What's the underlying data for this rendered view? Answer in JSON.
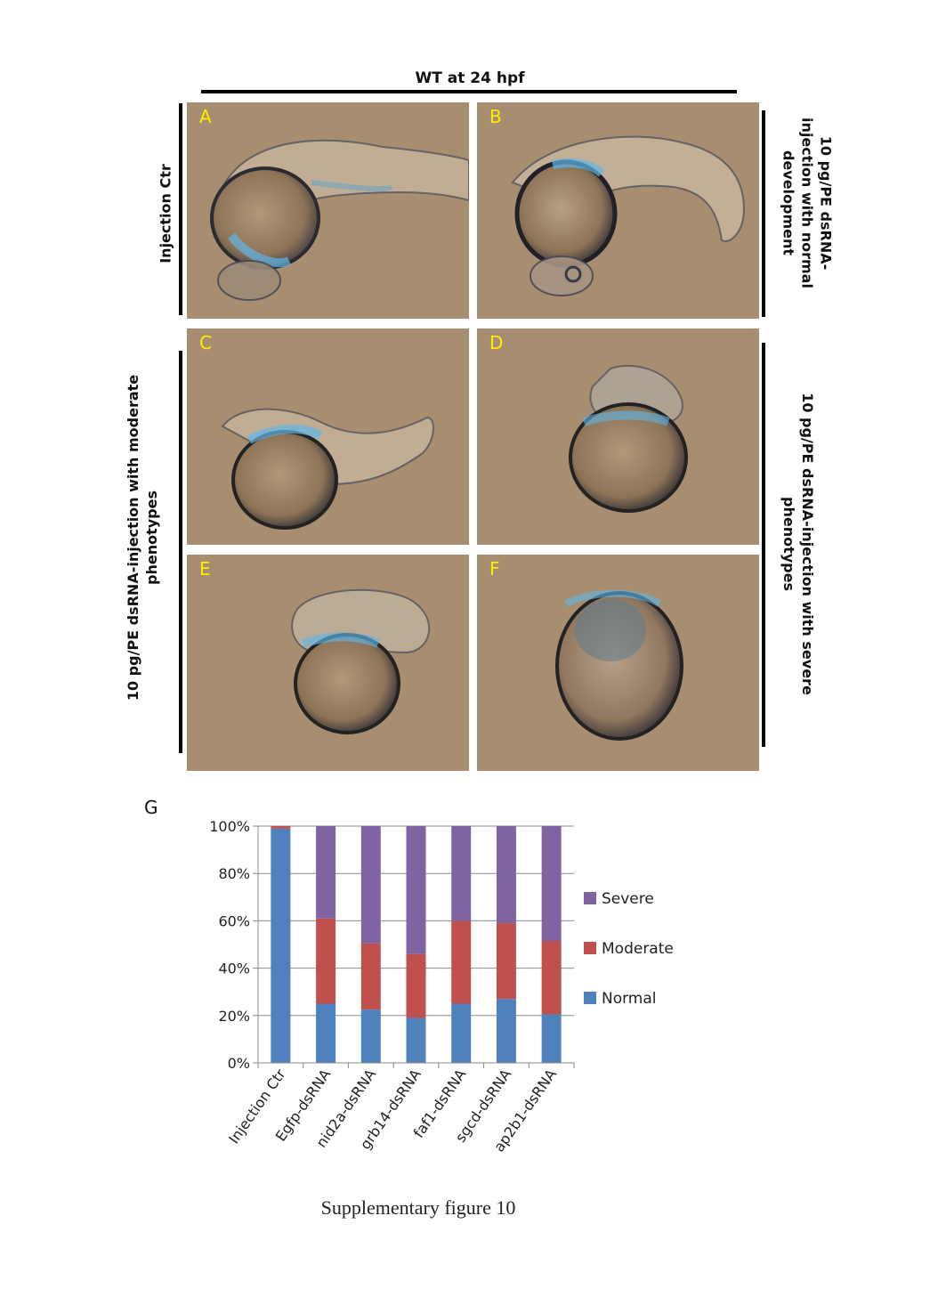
{
  "header": {
    "title": "WT at 24 hpf"
  },
  "side_labels": {
    "top_left": "Injection Ctr",
    "top_right_lines": [
      "10 pg/PE dsRNA-",
      "injection with normal",
      "development"
    ],
    "bottom_left_lines": [
      "10 pg/PE dsRNA-injection with moderate",
      "phenotypes"
    ],
    "bottom_right_lines": [
      "10 pg/PE dsRNA-injection with severe",
      "phenotypes"
    ]
  },
  "panels": [
    {
      "label": "A",
      "phenotype": "normal"
    },
    {
      "label": "B",
      "phenotype": "normal"
    },
    {
      "label": "C",
      "phenotype": "moderate"
    },
    {
      "label": "D",
      "phenotype": "severe"
    },
    {
      "label": "E",
      "phenotype": "moderate"
    },
    {
      "label": "F",
      "phenotype": "severe"
    }
  ],
  "chart_panel_label": "G",
  "chart_data": {
    "type": "bar",
    "stacked": true,
    "categories": [
      "Injection Ctr",
      "Egfp-dsRNA",
      "nid2a-dsRNA",
      "grb14-dsRNA",
      "faf1-dsRNA",
      "sgcd-dsRNA",
      "ap2b1-dsRNA"
    ],
    "series": [
      {
        "name": "Normal",
        "color": "#4f81bd",
        "values": [
          99,
          25,
          22.5,
          19,
          25,
          27,
          20.5
        ]
      },
      {
        "name": "Moderate",
        "color": "#c0504d",
        "values": [
          1,
          36,
          28,
          27,
          35,
          32,
          31
        ]
      },
      {
        "name": "Severe",
        "color": "#8064a2",
        "values": [
          0,
          39,
          49.5,
          54,
          40,
          41,
          48.5
        ]
      }
    ],
    "ylim": [
      0,
      100
    ],
    "yticks": [
      "0%",
      "20%",
      "40%",
      "60%",
      "80%",
      "100%"
    ],
    "grid": true,
    "legend_order": [
      "Severe",
      "Moderate",
      "Normal"
    ],
    "legend_position": "right"
  },
  "caption": "Supplementary figure 10"
}
